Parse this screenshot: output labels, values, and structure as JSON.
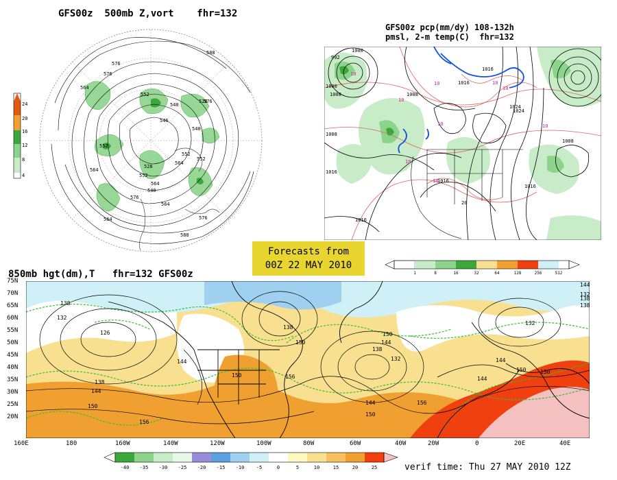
{
  "panel_500mb": {
    "title": "GFS00z  500mb Z,vort    fhr=132",
    "colorbar_ticks": [
      "24",
      "20",
      "16",
      "12",
      "8",
      "4"
    ],
    "contour_labels": [
      "576",
      "564",
      "552",
      "540",
      "528",
      "546",
      "540",
      "552",
      "564",
      "576",
      "588",
      "576",
      "564",
      "552",
      "540",
      "528",
      "552",
      "564",
      "576",
      "564",
      "552",
      "588",
      "576",
      "564"
    ]
  },
  "panel_precip": {
    "title_line1": "GFS00z pcp(mm/dy) 108-132h",
    "title_line2": "pmsl, 2-m temp(C)  fhr=132",
    "colorbar_ticks": [
      "1",
      "8",
      "16",
      "32",
      "64",
      "128",
      "256",
      "512"
    ],
    "isobar_labels": [
      "992",
      "1000",
      "1008",
      "1016",
      "1016",
      "1008",
      "1016",
      "1000",
      "1008",
      "1024",
      "1016",
      "1008",
      "1016",
      "1016"
    ],
    "temp_labels": [
      "10",
      "10",
      "10",
      "10",
      "10",
      "10",
      "10",
      "10",
      "10"
    ],
    "other_labels": [
      "1024",
      "20",
      "10"
    ]
  },
  "banner": {
    "line1": "Forecasts from",
    "line2": "00Z 22 MAY 2010"
  },
  "panel_850mb": {
    "title": "850mb hgt(dm),T   fhr=132 GFS00z",
    "lat_labels": [
      "75N",
      "70N",
      "65N",
      "60N",
      "55N",
      "50N",
      "45N",
      "40N",
      "35N",
      "30N",
      "25N",
      "20N"
    ],
    "lon_labels": [
      "160E",
      "180",
      "160W",
      "140W",
      "120W",
      "100W",
      "80W",
      "60W",
      "40W",
      "20W",
      "0",
      "20E",
      "40E"
    ],
    "height_labels": [
      "138",
      "132",
      "126",
      "144",
      "150",
      "138",
      "144",
      "150",
      "156",
      "156",
      "150",
      "144",
      "138",
      "132",
      "144",
      "150",
      "138",
      "150",
      "156",
      "144",
      "150",
      "144",
      "132",
      "138",
      "150",
      "144",
      "138",
      "132"
    ],
    "colorbar_ticks": [
      "-40",
      "-35",
      "-30",
      "-25",
      "-20",
      "-15",
      "-10",
      "-5",
      "0",
      "5",
      "10",
      "15",
      "20",
      "25"
    ],
    "verif_time": "verif time: Thu 27 MAY 2010 12Z"
  },
  "colors": {
    "green_dark": "#3ca83c",
    "green_light": "#b5e6b5",
    "orange": "#f0a030",
    "yellow": "#f8e090",
    "red": "#f04010",
    "pink": "#f5c0c0",
    "cyan": "#d0f0f8",
    "blue_light": "#a0d0f0",
    "banner": "#e8d530"
  }
}
